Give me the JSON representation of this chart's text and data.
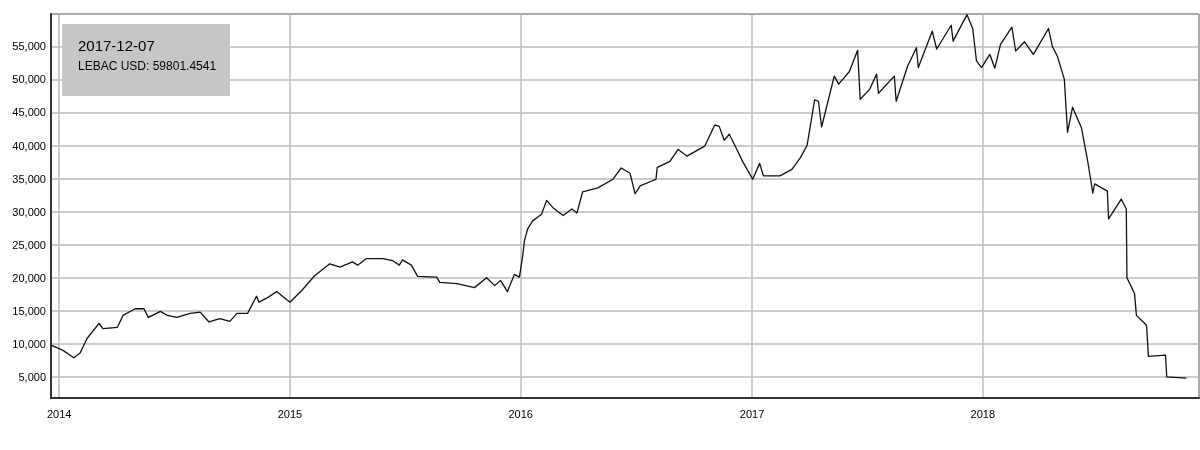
{
  "chart_data": {
    "type": "line",
    "annotations": [
      "2017-12-07",
      "LEBAC USD: 59801.4541"
    ],
    "x": [
      "2013-12-19",
      "2014-01-07",
      "2014-01-24",
      "2014-02-03",
      "2014-02-14",
      "2014-03-05",
      "2014-03-11",
      "2014-04-03",
      "2014-04-12",
      "2014-05-01",
      "2014-05-15",
      "2014-05-22",
      "2014-06-10",
      "2014-06-21",
      "2014-07-06",
      "2014-07-27",
      "2014-08-12",
      "2014-08-26",
      "2014-09-12",
      "2014-09-28",
      "2014-10-09",
      "2014-10-26",
      "2014-11-09",
      "2014-11-13",
      "2014-11-25",
      "2014-12-11",
      "2015-01-01",
      "2015-01-20",
      "2015-02-09",
      "2015-03-05",
      "2015-03-21",
      "2015-04-10",
      "2015-04-18",
      "2015-05-02",
      "2015-05-28",
      "2015-06-12",
      "2015-06-23",
      "2015-06-28",
      "2015-07-12",
      "2015-07-22",
      "2015-08-21",
      "2015-08-26",
      "2015-09-22",
      "2015-10-20",
      "2015-11-08",
      "2015-11-21",
      "2015-11-30",
      "2015-12-11",
      "2015-12-22",
      "2015-12-30",
      "2016-01-04",
      "2016-01-07",
      "2016-01-12",
      "2016-01-20",
      "2016-02-03",
      "2016-02-11",
      "2016-02-21",
      "2016-03-08",
      "2016-03-22",
      "2016-03-30",
      "2016-04-08",
      "2016-05-02",
      "2016-05-26",
      "2016-06-08",
      "2016-06-22",
      "2016-06-30",
      "2016-07-08",
      "2016-08-02",
      "2016-08-04",
      "2016-08-24",
      "2016-09-06",
      "2016-09-20",
      "2016-10-18",
      "2016-11-03",
      "2016-11-10",
      "2016-11-18",
      "2016-11-26",
      "2016-12-07",
      "2016-12-17",
      "2017-01-02",
      "2017-01-13",
      "2017-01-19",
      "2017-02-14",
      "2017-03-05",
      "2017-03-18",
      "2017-03-29",
      "2017-04-10",
      "2017-04-16",
      "2017-04-21",
      "2017-05-11",
      "2017-05-18",
      "2017-06-04",
      "2017-06-17",
      "2017-06-21",
      "2017-07-06",
      "2017-07-17",
      "2017-07-20",
      "2017-08-14",
      "2017-08-17",
      "2017-09-04",
      "2017-09-18",
      "2017-09-21",
      "2017-10-13",
      "2017-10-20",
      "2017-11-12",
      "2017-11-15",
      "2017-12-07",
      "2017-12-16",
      "2017-12-22",
      "2017-12-30",
      "2018-01-12",
      "2018-01-20",
      "2018-01-29",
      "2018-02-16",
      "2018-02-22",
      "2018-03-08",
      "2018-03-22",
      "2018-04-15",
      "2018-04-21",
      "2018-04-29",
      "2018-05-10",
      "2018-05-15",
      "2018-05-23",
      "2018-06-06",
      "2018-06-16",
      "2018-06-24",
      "2018-06-27",
      "2018-07-17",
      "2018-07-19",
      "2018-08-08",
      "2018-08-16",
      "2018-08-17",
      "2018-08-29",
      "2018-09-01",
      "2018-09-17",
      "2018-09-20",
      "2018-10-17",
      "2018-10-19",
      "2018-11-19"
    ],
    "series": [
      {
        "color": "#111111",
        "values": [
          9800,
          9000,
          7900,
          8600,
          10800,
          13100,
          12300,
          12500,
          14300,
          15300,
          15300,
          14000,
          14900,
          14300,
          14000,
          14600,
          14800,
          13300,
          13800,
          13400,
          14600,
          14600,
          17200,
          16300,
          16900,
          17900,
          16300,
          18100,
          20300,
          22100,
          21600,
          22400,
          21900,
          22900,
          22900,
          22600,
          21900,
          22700,
          21900,
          20200,
          20100,
          19300,
          19100,
          18500,
          20000,
          18800,
          19600,
          17900,
          20500,
          20100,
          23200,
          25600,
          27400,
          28600,
          29600,
          31700,
          30600,
          29400,
          30400,
          29800,
          33000,
          33600,
          34900,
          36600,
          35800,
          32700,
          33900,
          34900,
          36700,
          37600,
          39400,
          38400,
          39900,
          43100,
          42900,
          40800,
          41700,
          39600,
          37600,
          34900,
          37300,
          35400,
          35400,
          36400,
          38100,
          40000,
          46900,
          46700,
          42800,
          50500,
          49300,
          51200,
          54400,
          47000,
          48500,
          50800,
          47900,
          50500,
          46700,
          52000,
          54800,
          51800,
          57300,
          54600,
          58200,
          55800,
          59800,
          57700,
          52800,
          51800,
          53800,
          51700,
          55300,
          57900,
          54300,
          55700,
          53800,
          57700,
          55000,
          53500,
          50000,
          42000,
          45800,
          42700,
          37600,
          32800,
          34200,
          33100,
          28900,
          31900,
          30400,
          20000,
          17600,
          14300,
          12800,
          8100,
          8300,
          5000,
          4800
        ]
      }
    ],
    "xlim": [
      "2013-12-19",
      "2018-12-09"
    ],
    "xticks": [
      "2014",
      "2015",
      "2016",
      "2017",
      "2018"
    ],
    "ylim": [
      1800,
      59900
    ],
    "yticks": [
      {
        "value": 5000,
        "label": "5,000"
      },
      {
        "value": 10000,
        "label": "10,000"
      },
      {
        "value": 15000,
        "label": "15,000"
      },
      {
        "value": 20000,
        "label": "20,000"
      },
      {
        "value": 25000,
        "label": "25,000"
      },
      {
        "value": 30000,
        "label": "30,000"
      },
      {
        "value": 35000,
        "label": "35,000"
      },
      {
        "value": 40000,
        "label": "40,000"
      },
      {
        "value": 45000,
        "label": "45,000"
      },
      {
        "value": 50000,
        "label": "50,000"
      },
      {
        "value": 55000,
        "label": "55,000"
      }
    ],
    "grid": true,
    "marker": "none",
    "line_style": "solid"
  }
}
